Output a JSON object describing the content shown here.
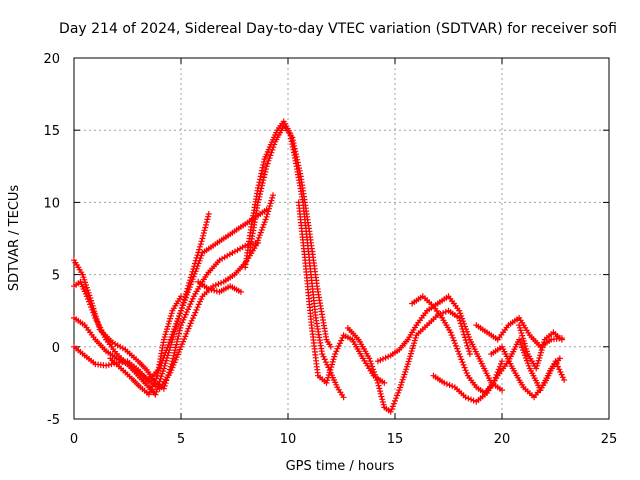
{
  "chart_data": {
    "type": "scatter",
    "title": "Day 214 of 2024, Sidereal Day-to-day VTEC variation (SDTVAR) for receiver sofi",
    "xlabel": "GPS time / hours",
    "ylabel": "SDTVAR / TECUs",
    "xlim": [
      0,
      25
    ],
    "ylim": [
      -5,
      20
    ],
    "xticks": [
      "0",
      "5",
      "10",
      "15",
      "20",
      "25"
    ],
    "xtick_values": [
      0,
      5,
      10,
      15,
      20,
      25
    ],
    "yticks": [
      "-5",
      "0",
      "5",
      "10",
      "15",
      "20"
    ],
    "ytick_values": [
      -5,
      0,
      5,
      10,
      15,
      20
    ],
    "grid": true,
    "marker": "+",
    "color": "#ff0000",
    "series": [
      {
        "name": "track-1",
        "x": [
          0.0,
          0.3,
          0.6,
          1.0,
          1.5,
          2.0,
          2.5,
          3.0,
          3.5,
          3.8
        ],
        "y": [
          4.2,
          4.5,
          3.5,
          2.0,
          0.5,
          -0.5,
          -1.2,
          -2.0,
          -2.8,
          -3.3
        ]
      },
      {
        "name": "track-2",
        "x": [
          3.8,
          4.2,
          4.6,
          5.0,
          5.5,
          6.0,
          6.5,
          7.0,
          7.5,
          8.0,
          8.5,
          9.0
        ],
        "y": [
          -3.3,
          -1.5,
          0.5,
          2.5,
          4.5,
          6.5,
          7.0,
          7.5,
          8.0,
          8.5,
          9.0,
          9.5
        ]
      },
      {
        "name": "track-3",
        "x": [
          0.0,
          0.5,
          1.0,
          1.5,
          2.0,
          2.5,
          3.0,
          3.5,
          4.0,
          4.5,
          5.0,
          5.5,
          6.0,
          6.3
        ],
        "y": [
          2.0,
          1.5,
          0.5,
          -0.3,
          -0.8,
          -1.2,
          -1.8,
          -2.3,
          -1.5,
          0.5,
          2.5,
          5.0,
          7.5,
          9.2
        ]
      },
      {
        "name": "track-4",
        "x": [
          0.0,
          0.4,
          0.8,
          1.2,
          1.8,
          2.4,
          3.0,
          3.4,
          3.8,
          4.2,
          4.6,
          5.0,
          5.6,
          6.2,
          6.8,
          7.4,
          8.0,
          8.6
        ],
        "y": [
          6.0,
          5.0,
          3.2,
          1.2,
          0.3,
          -0.2,
          -1.0,
          -1.6,
          -2.5,
          -2.9,
          -1.0,
          1.5,
          3.5,
          5.0,
          6.0,
          6.5,
          7.0,
          7.2
        ]
      },
      {
        "name": "track-5",
        "x": [
          0.0,
          0.5,
          1.0,
          1.5,
          2.0,
          2.5,
          3.0,
          3.5,
          4.0,
          4.5,
          5.0,
          5.5,
          6.0,
          6.5,
          7.0,
          7.5,
          8.0,
          8.5,
          9.0,
          9.3
        ],
        "y": [
          0.0,
          -0.6,
          -1.2,
          -1.3,
          -1.1,
          -1.0,
          -1.6,
          -2.4,
          -2.9,
          -1.8,
          0.0,
          1.8,
          3.5,
          4.2,
          4.5,
          5.0,
          5.8,
          7.0,
          9.0,
          10.5
        ]
      },
      {
        "name": "track-6",
        "x": [
          1.7,
          2.2,
          2.7,
          3.1,
          3.5,
          3.9,
          4.2,
          4.6,
          5.0
        ],
        "y": [
          -0.8,
          -1.5,
          -2.2,
          -2.8,
          -3.3,
          -2.0,
          0.5,
          2.5,
          3.5
        ]
      },
      {
        "name": "track-7",
        "x": [
          5.8,
          6.3,
          6.8,
          7.3,
          7.8
        ],
        "y": [
          4.5,
          4.0,
          3.8,
          4.2,
          3.8
        ]
      },
      {
        "name": "track-8",
        "x": [
          8.0,
          8.3,
          8.6,
          8.9,
          9.2,
          9.5,
          9.8,
          10.1,
          10.4,
          10.7,
          11.0,
          11.3,
          11.6,
          12.0,
          12.3,
          12.6
        ],
        "y": [
          5.5,
          8.5,
          11.0,
          13.0,
          14.0,
          15.0,
          15.6,
          14.8,
          12.5,
          10.0,
          6.0,
          2.0,
          -0.5,
          -1.8,
          -2.8,
          -3.5
        ]
      },
      {
        "name": "track-9",
        "x": [
          8.2,
          8.6,
          9.0,
          9.4,
          9.8,
          10.2,
          10.6,
          11.0,
          11.4,
          11.8,
          12.0
        ],
        "y": [
          6.5,
          10.0,
          12.5,
          14.2,
          15.3,
          14.5,
          11.8,
          8.0,
          3.8,
          0.5,
          0.0
        ]
      },
      {
        "name": "track-10",
        "x": [
          10.5,
          10.8,
          11.1,
          11.4,
          11.8,
          12.2,
          12.6,
          13.0,
          13.5,
          14.0,
          14.5
        ],
        "y": [
          10.0,
          6.0,
          1.5,
          -2.0,
          -2.5,
          -0.5,
          0.8,
          0.5,
          -0.8,
          -2.0,
          -2.5
        ]
      },
      {
        "name": "track-11",
        "x": [
          12.8,
          13.3,
          13.8,
          14.2,
          14.5,
          14.8,
          15.2,
          15.6,
          16.0,
          16.5,
          17.0,
          17.5,
          18.0,
          18.5
        ],
        "y": [
          1.3,
          0.5,
          -0.8,
          -2.5,
          -4.2,
          -4.5,
          -3.0,
          -1.2,
          0.8,
          1.5,
          2.2,
          2.5,
          2.0,
          -0.5
        ]
      },
      {
        "name": "track-12",
        "x": [
          14.2,
          14.8,
          15.2,
          15.6,
          16.0,
          16.5,
          17.0,
          17.5,
          18.0,
          18.5,
          19.0,
          19.5,
          20.0
        ],
        "y": [
          -1.0,
          -0.6,
          -0.2,
          0.5,
          1.5,
          2.5,
          3.0,
          3.5,
          2.5,
          0.5,
          -1.0,
          -2.5,
          -3.0
        ]
      },
      {
        "name": "track-13",
        "x": [
          15.8,
          16.3,
          16.8,
          17.2,
          17.6,
          18.0,
          18.4,
          18.8,
          19.2,
          19.6,
          20.0
        ],
        "y": [
          3.0,
          3.5,
          2.8,
          2.0,
          1.0,
          -0.5,
          -2.0,
          -2.8,
          -3.2,
          -2.5,
          -1.0
        ]
      },
      {
        "name": "track-14",
        "x": [
          16.8,
          17.3,
          17.8,
          18.3,
          18.8,
          19.3,
          19.8,
          20.3,
          20.8,
          21.3,
          21.8,
          22.3,
          22.7
        ],
        "y": [
          -2.0,
          -2.5,
          -2.8,
          -3.5,
          -3.8,
          -3.2,
          -2.0,
          -1.0,
          0.5,
          -1.5,
          -3.0,
          -1.5,
          -0.8
        ]
      },
      {
        "name": "track-15",
        "x": [
          18.8,
          19.3,
          19.8,
          20.3,
          20.8,
          21.3,
          21.8,
          22.3,
          22.8
        ],
        "y": [
          1.5,
          1.0,
          0.5,
          1.5,
          2.0,
          0.8,
          0.0,
          0.5,
          0.6
        ]
      },
      {
        "name": "track-16",
        "x": [
          19.5,
          20.0,
          20.5,
          21.0,
          21.5,
          22.0,
          22.5,
          22.9
        ],
        "y": [
          -0.5,
          0.0,
          -1.5,
          -2.8,
          -3.5,
          -2.5,
          -1.0,
          -2.3
        ]
      },
      {
        "name": "track-17",
        "x": [
          20.8,
          21.2,
          21.6,
          22.0,
          22.4,
          22.8
        ],
        "y": [
          1.5,
          -0.5,
          -1.5,
          0.5,
          1.0,
          0.5
        ]
      }
    ]
  }
}
